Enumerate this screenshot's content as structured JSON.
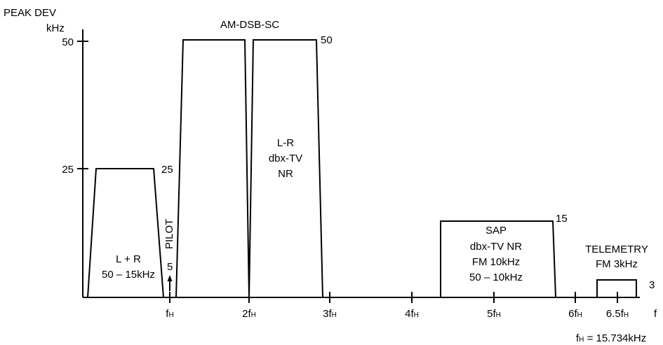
{
  "axis": {
    "y_title_line1": "PEAK DEV",
    "y_title_line2": "kHz",
    "y_ticks": [
      "50",
      "25"
    ],
    "x_axis_label": "f",
    "x_ticks": [
      {
        "main": "f",
        "sub": "H"
      },
      {
        "main": "2f",
        "sub": "H"
      },
      {
        "main": "3f",
        "sub": "H"
      },
      {
        "main": "4f",
        "sub": "H"
      },
      {
        "main": "5f",
        "sub": "H"
      },
      {
        "main": "6f",
        "sub": "H"
      },
      {
        "main": "6.5f",
        "sub": "H"
      }
    ],
    "footnote": {
      "main": "f",
      "sub": "H",
      "rest": " = 15.734kHz"
    }
  },
  "blocks": {
    "lr_sum": {
      "line1": "L + R",
      "line2": "50 – 15kHz",
      "peak_label": "25"
    },
    "pilot": {
      "label": "PILOT",
      "value": "5"
    },
    "lr_diff": {
      "title": "AM-DSB-SC",
      "line1": "L-R",
      "line2": "dbx-TV",
      "line3": "NR",
      "peak_label": "50"
    },
    "sap": {
      "line1": "SAP",
      "line2": "dbx-TV NR",
      "line3": "FM 10kHz",
      "line4": "50 – 10kHz",
      "peak_label": "15"
    },
    "telemetry": {
      "line1": "TELEMETRY",
      "line2": "FM 3kHz",
      "peak_label": "3"
    }
  },
  "colors": {
    "stroke": "#000000",
    "background": "#ffffff"
  }
}
